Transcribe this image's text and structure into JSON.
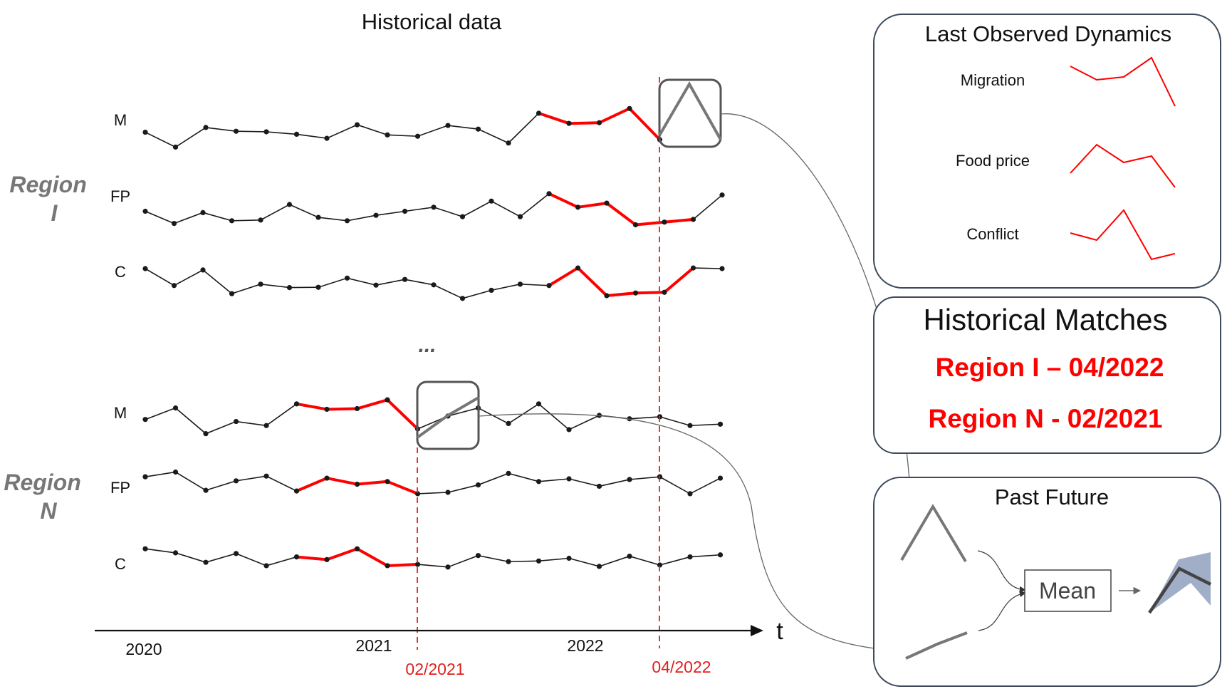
{
  "title": "Historical data",
  "regions": [
    {
      "label": "Region I",
      "label_lines": [
        "Region",
        "I"
      ],
      "series": [
        {
          "label": "M",
          "values": [
            0.55,
            -0.55,
            0.9,
            0.62,
            0.58,
            0.4,
            0.1,
            1.1,
            0.35,
            0.25,
            1.05,
            0.78,
            -0.25,
            1.95,
            1.2,
            1.25,
            2.3,
            0.0
          ]
        },
        {
          "label": "FP",
          "values": [
            0.5,
            -0.4,
            0.4,
            -0.2,
            -0.15,
            1.0,
            0.05,
            -0.2,
            0.2,
            0.5,
            0.8,
            0.1,
            1.25,
            0.1,
            1.8,
            0.8,
            1.1,
            -0.5,
            -0.3,
            -0.1,
            1.7
          ]
        },
        {
          "label": "C",
          "values": [
            2.0,
            0.75,
            1.9,
            0.15,
            0.85,
            0.6,
            0.62,
            1.3,
            0.78,
            1.2,
            0.8,
            -0.2,
            0.4,
            0.85,
            0.75,
            2.05,
            0.0,
            0.2,
            0.25,
            2.05,
            2.0
          ]
        }
      ]
    },
    {
      "label": "Region N",
      "label_lines": [
        "Region",
        "N"
      ],
      "series": [
        {
          "label": "M",
          "values": [
            0.7,
            1.55,
            -0.35,
            0.55,
            0.25,
            1.85,
            1.45,
            1.5,
            2.15,
            0.0,
            0.95,
            1.55,
            0.4,
            1.85,
            -0.05,
            1.0,
            0.75,
            0.9,
            0.25,
            0.35
          ]
        },
        {
          "label": "FP",
          "values": [
            2.15,
            2.5,
            1.15,
            1.85,
            2.2,
            1.1,
            2.05,
            1.6,
            1.8,
            0.9,
            1.0,
            1.55,
            2.4,
            1.8,
            2.0,
            1.45,
            1.95,
            2.15,
            0.9,
            2.05
          ]
        },
        {
          "label": "C",
          "values": [
            2.2,
            1.9,
            1.2,
            1.85,
            0.95,
            1.6,
            1.4,
            2.2,
            0.95,
            1.05,
            0.85,
            1.7,
            1.25,
            1.3,
            1.5,
            0.9,
            1.65,
            1.0,
            1.6,
            1.75
          ]
        }
      ]
    }
  ],
  "ellipsis": "...",
  "time_axis": {
    "label": "t",
    "year_labels": [
      "2020",
      "2021",
      "2022"
    ],
    "match_labels": [
      "02/2021",
      "04/2022"
    ]
  },
  "last_observed": {
    "title": "Last Observed Dynamics",
    "items": [
      "Migration",
      "Food price",
      "Conflict"
    ]
  },
  "historical_matches": {
    "title": "Historical Matches",
    "items": [
      "Region I – 04/2022",
      "Region N - 02/2021"
    ]
  },
  "past_future": {
    "title": "Past Future",
    "mean_label": "Mean"
  },
  "colors": {
    "series": "#1a1a1a",
    "highlight": "#ff0000",
    "match_line": "#e0201e",
    "box_border": "#3c4a5c",
    "gray_stroke": "#777777",
    "region_label": "#777777",
    "band": "#8fa0bd"
  }
}
